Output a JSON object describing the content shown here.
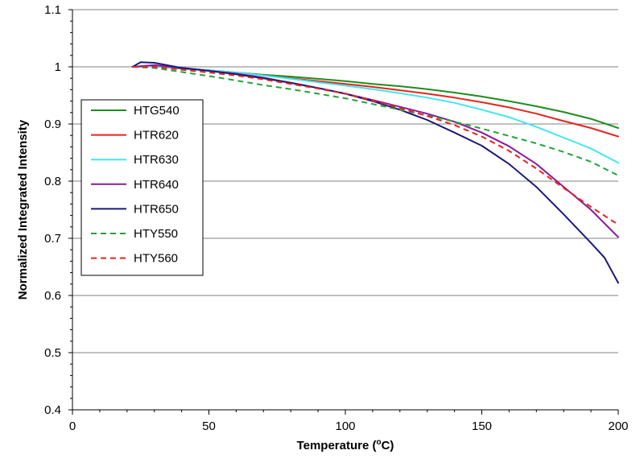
{
  "chart_data": {
    "type": "line",
    "title": "",
    "xlabel": "Temperature (oC)",
    "xlabel_parts": {
      "main": "Temperature (",
      "sup": "o",
      "end": "C)"
    },
    "ylabel": "Normalized Integrated Intensity",
    "xlim": [
      0,
      200
    ],
    "ylim": [
      0.4,
      1.1
    ],
    "xticks": [
      0,
      50,
      100,
      150,
      200
    ],
    "yticks": [
      0.4,
      0.5,
      0.6,
      0.7,
      0.8,
      0.9,
      1,
      1.1
    ],
    "xtick_labels": [
      "0",
      "50",
      "100",
      "150",
      "200"
    ],
    "ytick_labels": [
      "0.4",
      "0.5",
      "0.6",
      "0.7",
      "0.8",
      "0.9",
      "1",
      "1.1"
    ],
    "grid": "horizontal",
    "legend_position": "left",
    "series": [
      {
        "name": "HTG540",
        "color": "#1e8c1e",
        "dash": "solid",
        "x": [
          22,
          30,
          40,
          50,
          60,
          70,
          80,
          90,
          100,
          110,
          120,
          130,
          140,
          150,
          160,
          170,
          180,
          190,
          200
        ],
        "y": [
          1.0,
          1.001,
          0.997,
          0.994,
          0.99,
          0.986,
          0.983,
          0.979,
          0.975,
          0.97,
          0.966,
          0.961,
          0.955,
          0.948,
          0.94,
          0.931,
          0.921,
          0.909,
          0.893
        ]
      },
      {
        "name": "HTR620",
        "color": "#e8231d",
        "dash": "solid",
        "x": [
          22,
          30,
          40,
          50,
          60,
          70,
          80,
          90,
          100,
          110,
          120,
          130,
          140,
          150,
          160,
          170,
          180,
          190,
          200
        ],
        "y": [
          1.0,
          1.001,
          0.998,
          0.994,
          0.99,
          0.985,
          0.98,
          0.975,
          0.97,
          0.965,
          0.959,
          0.953,
          0.946,
          0.938,
          0.929,
          0.918,
          0.905,
          0.893,
          0.878
        ]
      },
      {
        "name": "HTR630",
        "color": "#3ee8ef",
        "dash": "solid",
        "x": [
          22,
          30,
          40,
          50,
          60,
          70,
          80,
          90,
          100,
          110,
          120,
          130,
          140,
          150,
          160,
          170,
          180,
          190,
          200
        ],
        "y": [
          1.0,
          1.001,
          0.998,
          0.994,
          0.99,
          0.985,
          0.979,
          0.973,
          0.967,
          0.961,
          0.954,
          0.946,
          0.937,
          0.925,
          0.912,
          0.895,
          0.876,
          0.857,
          0.832
        ]
      },
      {
        "name": "HTR640",
        "color": "#8b1a99",
        "dash": "solid",
        "x": [
          22,
          30,
          40,
          50,
          60,
          70,
          80,
          90,
          100,
          110,
          120,
          130,
          140,
          150,
          160,
          170,
          180,
          190,
          200
        ],
        "y": [
          1.0,
          1.003,
          0.998,
          0.993,
          0.988,
          0.981,
          0.972,
          0.963,
          0.953,
          0.942,
          0.93,
          0.918,
          0.904,
          0.885,
          0.861,
          0.83,
          0.79,
          0.75,
          0.702
        ]
      },
      {
        "name": "HTR650",
        "color": "#1a1a7a",
        "dash": "solid",
        "x": [
          22,
          25,
          30,
          40,
          50,
          60,
          70,
          80,
          90,
          100,
          110,
          120,
          130,
          140,
          150,
          160,
          170,
          180,
          190,
          195,
          200
        ],
        "y": [
          1.0,
          1.008,
          1.007,
          0.998,
          0.993,
          0.987,
          0.98,
          0.972,
          0.963,
          0.953,
          0.94,
          0.925,
          0.907,
          0.885,
          0.862,
          0.83,
          0.79,
          0.742,
          0.692,
          0.666,
          0.622
        ]
      },
      {
        "name": "HTY550",
        "color": "#22a33a",
        "dash": "dashed",
        "x": [
          22,
          30,
          40,
          50,
          60,
          70,
          80,
          90,
          100,
          110,
          120,
          130,
          140,
          150,
          160,
          170,
          180,
          190,
          200
        ],
        "y": [
          1.0,
          0.998,
          0.991,
          0.984,
          0.976,
          0.968,
          0.961,
          0.953,
          0.945,
          0.935,
          0.925,
          0.915,
          0.904,
          0.892,
          0.879,
          0.866,
          0.851,
          0.834,
          0.81
        ]
      },
      {
        "name": "HTY560",
        "color": "#e8231d",
        "dash": "dashed",
        "x": [
          22,
          30,
          40,
          50,
          60,
          70,
          80,
          90,
          100,
          110,
          120,
          130,
          140,
          150,
          160,
          170,
          180,
          190,
          200
        ],
        "y": [
          1.0,
          1.0,
          0.995,
          0.99,
          0.985,
          0.978,
          0.97,
          0.962,
          0.953,
          0.941,
          0.928,
          0.914,
          0.898,
          0.878,
          0.853,
          0.822,
          0.788,
          0.755,
          0.724
        ]
      }
    ]
  },
  "colors": {
    "background": "#ffffff",
    "gridline": "#808080",
    "axis": "#000000",
    "legend_border": "#000000"
  }
}
